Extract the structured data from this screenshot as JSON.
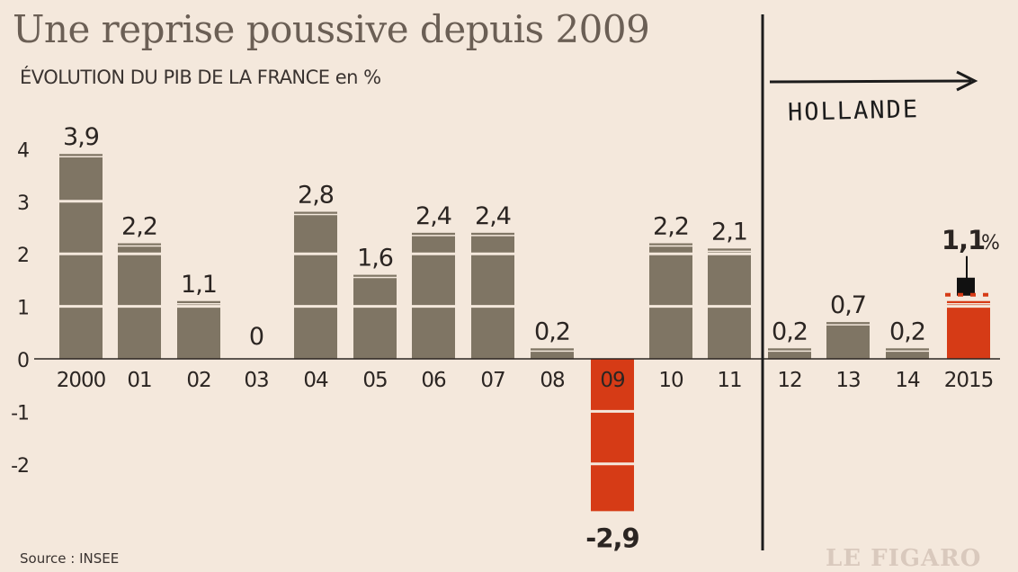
{
  "chart_data": {
    "type": "bar",
    "title": "Une reprise poussive depuis 2009",
    "subtitle": "ÉVOLUTION DU PIB DE LA FRANCE en %",
    "categories": [
      "2000",
      "01",
      "02",
      "03",
      "04",
      "05",
      "06",
      "07",
      "08",
      "09",
      "10",
      "11",
      "12",
      "13",
      "14",
      "2015"
    ],
    "values": [
      3.9,
      2.2,
      1.1,
      0,
      2.8,
      1.6,
      2.4,
      2.4,
      0.2,
      -2.9,
      2.2,
      2.1,
      0.2,
      0.7,
      0.2,
      1.1
    ],
    "value_labels": [
      "3,9",
      "2,2",
      "1,1",
      "0",
      "2,8",
      "1,6",
      "2,4",
      "2,4",
      "0,2",
      "-2,9",
      "2,2",
      "2,1",
      "0,2",
      "0,7",
      "0,2",
      "1,1"
    ],
    "value_label_suffix_2015": "%",
    "ylim": [
      -2.9,
      4
    ],
    "yticks": [
      4,
      3,
      2,
      1,
      0,
      -1,
      -2
    ],
    "ytick_labels": [
      "4",
      "3",
      "2",
      "1",
      "0",
      "-1",
      "-2"
    ],
    "highlight_categories": [
      "09",
      "2015"
    ],
    "colors": {
      "bar": "#7f7564",
      "highlight": "#d63b16",
      "marker": "#111111",
      "background": "#f4e8dc"
    },
    "annotation": {
      "text": "HOLLANDE",
      "from_category": "12"
    },
    "grid": false
  },
  "source": "Source : INSEE",
  "brand": "LE FIGARO"
}
